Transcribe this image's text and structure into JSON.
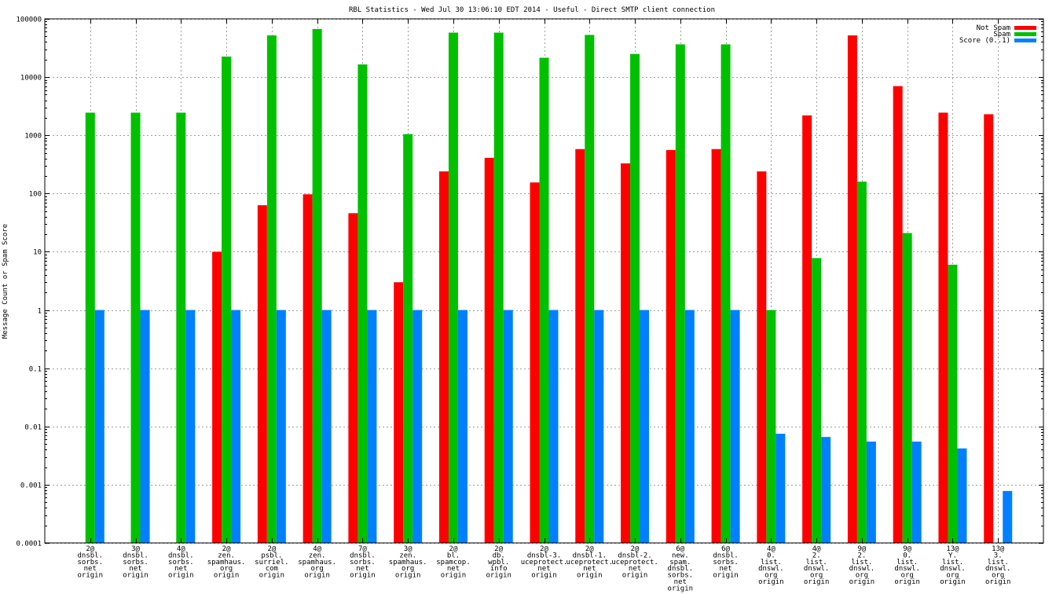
{
  "chart_data": {
    "type": "bar",
    "title": "RBL Statistics - Wed Jul 30 13:06:10 EDT 2014 - Useful - Direct SMTP client connection",
    "xlabel": "",
    "ylabel": "Message Count or Spam Score",
    "yscale": "log",
    "ylim": [
      0.0001,
      100000
    ],
    "yticks": [
      "0.0001",
      "0.001",
      "0.01",
      "0.1",
      "1",
      "10",
      "100",
      "1000",
      "10000",
      "100000"
    ],
    "grid": true,
    "legend_position": "top-right",
    "categories": [
      [
        "2@",
        "dnsbl.",
        "sorbs.",
        "net",
        "origin"
      ],
      [
        "3@",
        "dnsbl.",
        "sorbs.",
        "net",
        "origin"
      ],
      [
        "4@",
        "dnsbl.",
        "sorbs.",
        "net",
        "origin"
      ],
      [
        "2@",
        "zen.",
        "spamhaus.",
        "org",
        "origin"
      ],
      [
        "2@",
        "psbl.",
        "surriel.",
        "com",
        "origin"
      ],
      [
        "4@",
        "zen.",
        "spamhaus.",
        "org",
        "origin"
      ],
      [
        "7@",
        "dnsbl.",
        "sorbs.",
        "net",
        "origin"
      ],
      [
        "3@",
        "zen.",
        "spamhaus.",
        "org",
        "origin"
      ],
      [
        "2@",
        "bl.",
        "spamcop.",
        "net",
        "origin"
      ],
      [
        "2@",
        "db.",
        "wpbl.",
        "info",
        "origin"
      ],
      [
        "2@",
        "dnsbl-3.",
        "uceprotect.",
        "net",
        "origin"
      ],
      [
        "2@",
        "dnsbl-1.",
        "uceprotect.",
        "net",
        "origin"
      ],
      [
        "2@",
        "dnsbl-2.",
        "uceprotect.",
        "net",
        "origin"
      ],
      [
        "6@",
        "new.",
        "spam.",
        "dnsbl.",
        "sorbs.",
        "net",
        "origin"
      ],
      [
        "6@",
        "dnsbl.",
        "sorbs.",
        "net",
        "origin"
      ],
      [
        "4@",
        "0.",
        "list.",
        "dnswl.",
        "org",
        "origin"
      ],
      [
        "4@",
        "2.",
        "list.",
        "dnswl.",
        "org",
        "origin"
      ],
      [
        "9@",
        "2.",
        "list.",
        "dnswl.",
        "org",
        "origin"
      ],
      [
        "9@",
        "0.",
        "list.",
        "dnswl.",
        "org",
        "origin"
      ],
      [
        "13@",
        "Y.",
        "list.",
        "dnswl.",
        "org",
        "origin"
      ],
      [
        "13@",
        "3.",
        "list.",
        "dnswl.",
        "org",
        "origin"
      ]
    ],
    "series": [
      {
        "name": "Not Spam",
        "color": "#ff0000",
        "values": [
          null,
          null,
          null,
          10,
          63,
          97,
          46,
          3,
          240,
          410,
          155,
          580,
          330,
          560,
          580,
          240,
          2200,
          52000,
          7000,
          2450,
          2300
        ]
      },
      {
        "name": "Spam",
        "color": "#00c000",
        "values": [
          2450,
          2450,
          2450,
          22500,
          52000,
          67000,
          16500,
          1050,
          58000,
          58000,
          21500,
          53000,
          25000,
          36500,
          36500,
          1,
          7.8,
          160,
          21,
          6,
          null
        ]
      },
      {
        "name": "Score (0..1)",
        "color": "#0080ff",
        "values": [
          1,
          1,
          1,
          1,
          1,
          1,
          1,
          1,
          1,
          1,
          1,
          1,
          1,
          1,
          1,
          0.0075,
          0.0066,
          0.0055,
          0.0055,
          0.0042,
          0.00078
        ]
      }
    ]
  }
}
